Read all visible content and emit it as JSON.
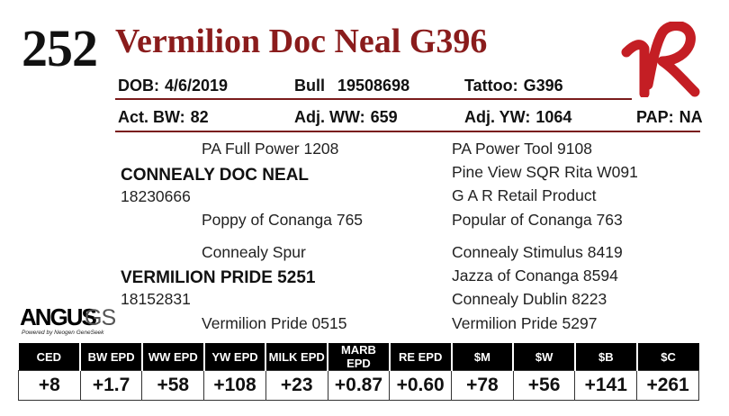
{
  "lot_number": "252",
  "animal_name": "Vermilion Doc Neal G396",
  "info_row1": {
    "dob_label": "DOB:",
    "dob": "4/6/2019",
    "sex": "Bull",
    "reg_no": "19508698",
    "tattoo_label": "Tattoo:",
    "tattoo": "G396"
  },
  "info_row2": {
    "bw_label": "Act. BW:",
    "bw": "82",
    "ww_label": "Adj. WW:",
    "ww": "659",
    "yw_label": "Adj. YW:",
    "yw": "1064",
    "pap_label": "PAP:",
    "pap": "NA"
  },
  "pedigree": {
    "sire": {
      "name": "CONNEALY DOC NEAL",
      "reg": "18230666"
    },
    "sire_sire": "PA Full Power 1208",
    "sire_dam": "Poppy of Conanga 765",
    "sss": "PA Power Tool 9108",
    "ssd": "Pine View SQR Rita W091",
    "sds": "G A R Retail Product",
    "sdd": "Popular of Conanga 763",
    "dam": {
      "name": "VERMILION PRIDE 5251",
      "reg": "18152831"
    },
    "dam_sire": "Connealy Spur",
    "dam_dam": "Vermilion Pride 0515",
    "dss": "Connealy Stimulus 8419",
    "dsd": "Jazza of Conanga 8594",
    "dds": "Connealy Dublin 8223",
    "ddd": "Vermilion Pride 5297"
  },
  "logo": {
    "angus": "ANGUS",
    "gs": "GS",
    "tagline": "Powered by Neogen GeneSeek"
  },
  "brand": {
    "color": "#c41e24"
  },
  "epd_headers": [
    "CED",
    "BW EPD",
    "WW EPD",
    "YW EPD",
    "MILK EPD",
    "MARB EPD",
    "RE EPD",
    "$M",
    "$W",
    "$B",
    "$C"
  ],
  "epd_values": [
    "+8",
    "+1.7",
    "+58",
    "+108",
    "+23",
    "+0.87",
    "+0.60",
    "+78",
    "+56",
    "+141",
    "+261"
  ]
}
